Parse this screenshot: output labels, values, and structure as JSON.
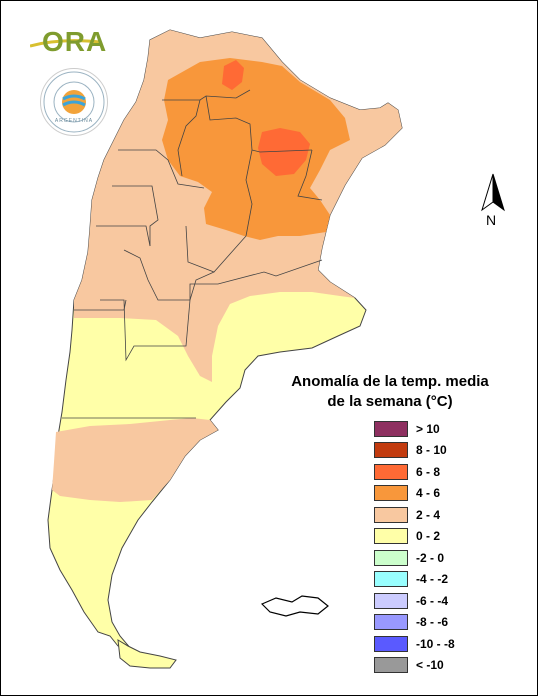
{
  "logo": {
    "text": "ORA",
    "seal_caption": "ARGENTINA"
  },
  "north": {
    "label": "N"
  },
  "legend": {
    "title_line1": "Anomalía de la temp. media",
    "title_line2": "de la semana (°C)",
    "items": [
      {
        "label": "> 10",
        "color": "#8e3060"
      },
      {
        "label": "8 - 10",
        "color": "#c23b0f"
      },
      {
        "label": "6 - 8",
        "color": "#ff6a35"
      },
      {
        "label": "4 - 6",
        "color": "#f8973b"
      },
      {
        "label": "2 - 4",
        "color": "#f8c8a0"
      },
      {
        "label": "0 - 2",
        "color": "#ffffa8"
      },
      {
        "label": "-2 - 0",
        "color": "#ccffcc"
      },
      {
        "label": "-4 - -2",
        "color": "#99ffff"
      },
      {
        "label": "-6 - -4",
        "color": "#ccccff"
      },
      {
        "label": "-8 - -6",
        "color": "#9999ff"
      },
      {
        "label": "-10 - -8",
        "color": "#5a5aff"
      },
      {
        "label": "< -10",
        "color": "#999999"
      }
    ]
  }
}
